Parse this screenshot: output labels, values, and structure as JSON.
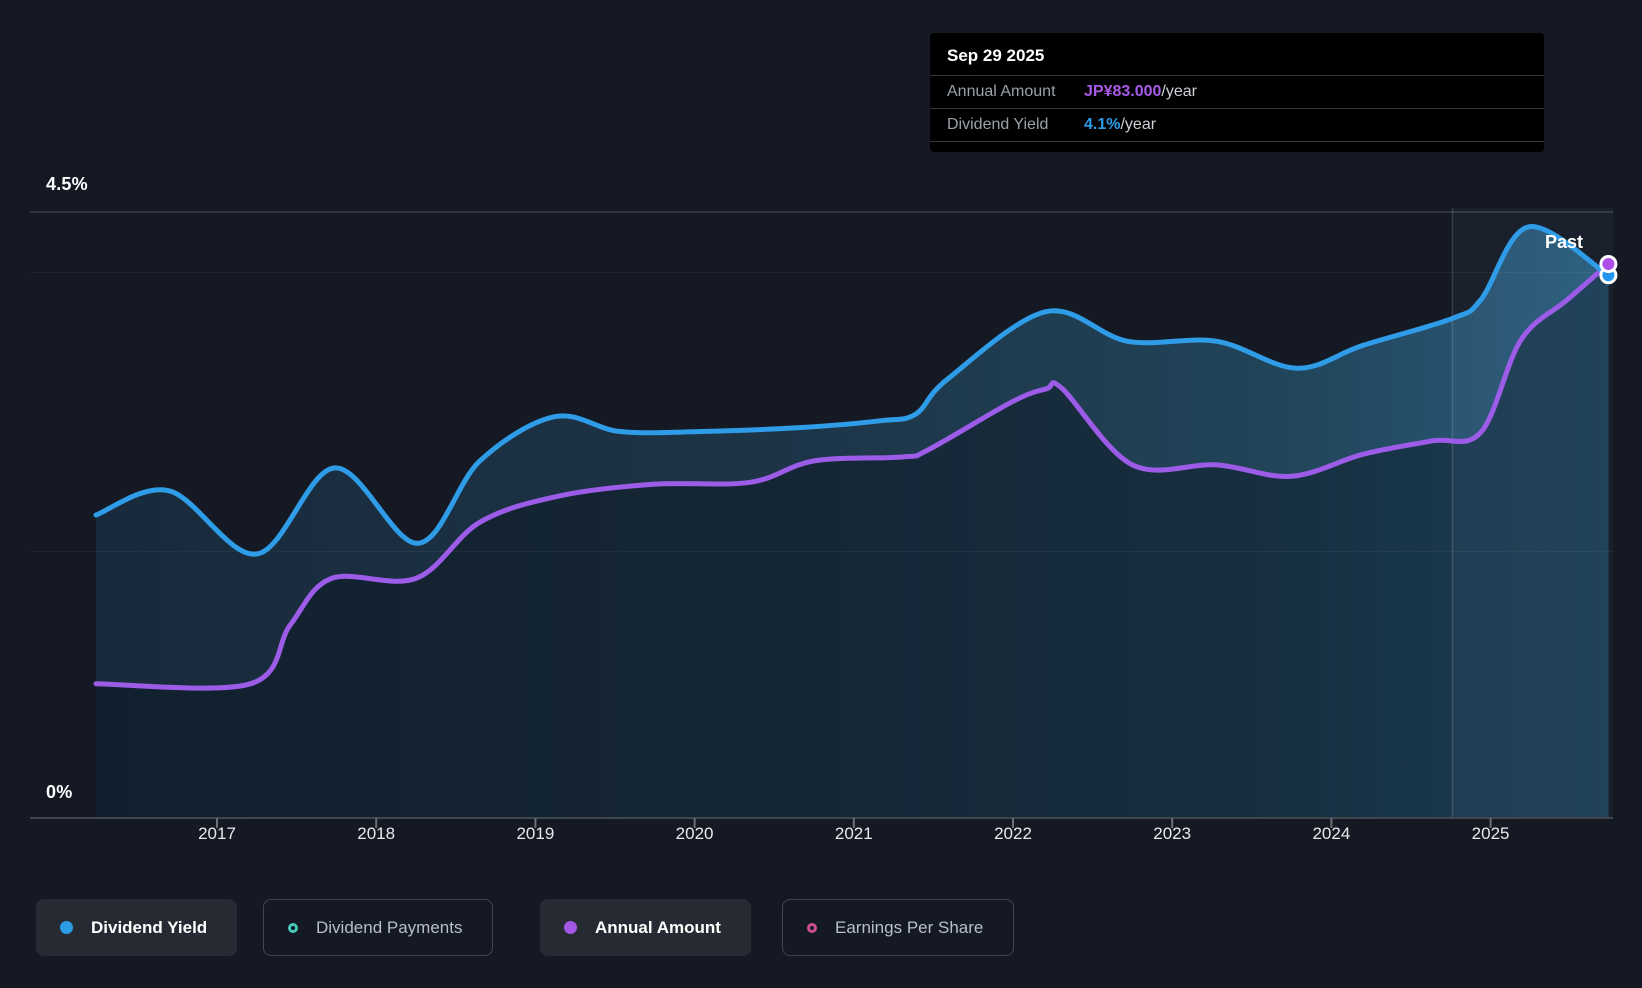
{
  "tooltip": {
    "date": "Sep 29 2025",
    "rows": [
      {
        "label": "Annual Amount",
        "value": "JP¥83.000",
        "suffix": "/year",
        "color": "#a85ae8"
      },
      {
        "label": "Dividend Yield",
        "value": "4.1%",
        "suffix": "/year",
        "color": "#2d9cea"
      }
    ]
  },
  "axis": {
    "y_top_label": "4.5%",
    "y_bottom_label": "0%",
    "x_ticks": [
      "2017",
      "2018",
      "2019",
      "2020",
      "2021",
      "2022",
      "2023",
      "2024",
      "2025"
    ]
  },
  "annotations": {
    "past_label": "Past"
  },
  "legend": [
    {
      "label": "Dividend Yield",
      "active": true,
      "marker": "filled",
      "color": "#2e9be6"
    },
    {
      "label": "Dividend Payments",
      "active": false,
      "marker": "ring",
      "color": "#45c8bb"
    },
    {
      "label": "Annual Amount",
      "active": true,
      "marker": "filled",
      "color": "#a257e6"
    },
    {
      "label": "Earnings Per Share",
      "active": false,
      "marker": "ring",
      "color": "#cf4f8e"
    }
  ],
  "chart_data": {
    "type": "line",
    "title": "Dividend yield and annual dividend amount history",
    "x_axis": {
      "ticks": [
        2017,
        2018,
        2019,
        2020,
        2021,
        2022,
        2023,
        2024,
        2025
      ],
      "range_years": [
        2016.2,
        2025.82
      ]
    },
    "y_axis": {
      "label_top": "4.5%",
      "label_bottom": "0%",
      "range_pct": [
        0,
        4.5
      ]
    },
    "grid_pct_lines": [
      4.5,
      4.05,
      1.98
    ],
    "past_divider_year": 2024.76,
    "legend_position": "bottom",
    "series": [
      {
        "name": "Dividend Yield",
        "unit": "%",
        "color": "#2f9ce8",
        "final_value": "4.1%",
        "points": [
          [
            2016.24,
            2.25
          ],
          [
            2016.7,
            2.43
          ],
          [
            2017.25,
            1.96
          ],
          [
            2017.74,
            2.6
          ],
          [
            2018.26,
            2.04
          ],
          [
            2018.65,
            2.65
          ],
          [
            2019.12,
            2.98
          ],
          [
            2019.53,
            2.87
          ],
          [
            2020.04,
            2.87
          ],
          [
            2020.67,
            2.9
          ],
          [
            2021.17,
            2.95
          ],
          [
            2021.39,
            3.0
          ],
          [
            2021.59,
            3.26
          ],
          [
            2022.21,
            3.76
          ],
          [
            2022.72,
            3.54
          ],
          [
            2023.28,
            3.54
          ],
          [
            2023.78,
            3.34
          ],
          [
            2024.2,
            3.51
          ],
          [
            2024.76,
            3.71
          ],
          [
            2024.94,
            3.85
          ],
          [
            2025.24,
            4.39
          ],
          [
            2025.74,
            4.03
          ]
        ]
      },
      {
        "name": "Annual Amount",
        "unit": "JP¥/year",
        "color": "#9d5ce8",
        "final_value": "JP¥83.000",
        "points": [
          [
            2016.24,
            20.1
          ],
          [
            2017.21,
            20.1
          ],
          [
            2017.46,
            28.9
          ],
          [
            2017.72,
            35.9
          ],
          [
            2018.25,
            35.9
          ],
          [
            2018.65,
            44.3
          ],
          [
            2019.14,
            48.2
          ],
          [
            2019.74,
            50.0
          ],
          [
            2020.35,
            50.3
          ],
          [
            2020.75,
            53.5
          ],
          [
            2021.31,
            54.1
          ],
          [
            2021.47,
            55.2
          ],
          [
            2021.99,
            62.3
          ],
          [
            2022.21,
            64.3
          ],
          [
            2022.31,
            64.3
          ],
          [
            2022.75,
            52.9
          ],
          [
            2023.28,
            52.9
          ],
          [
            2023.75,
            51.2
          ],
          [
            2024.2,
            54.5
          ],
          [
            2024.63,
            56.5
          ],
          [
            2024.94,
            57.8
          ],
          [
            2025.19,
            71.6
          ],
          [
            2025.48,
            77.6
          ],
          [
            2025.74,
            83.0
          ]
        ]
      }
    ]
  }
}
